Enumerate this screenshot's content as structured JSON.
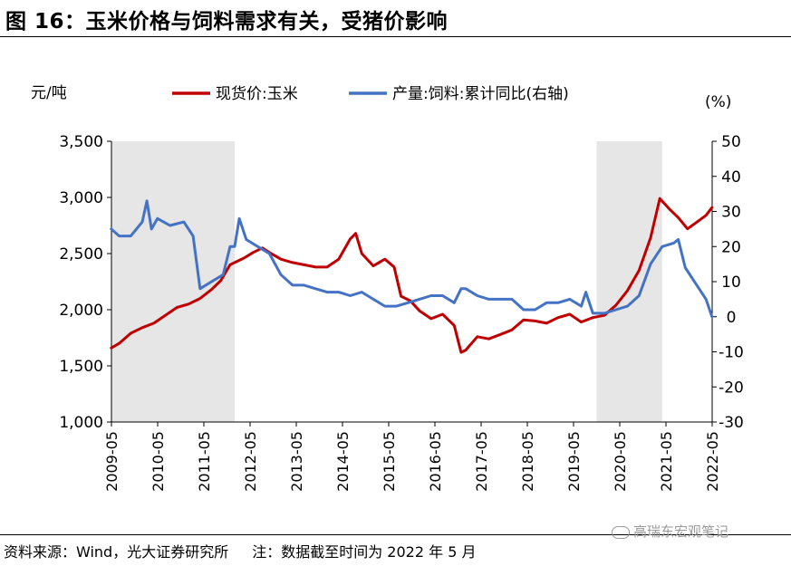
{
  "figure": {
    "title": "图 16：玉米价格与饲料需求有关，受猪价影响",
    "source": "资料来源：Wind，光大证券研究所",
    "note": "注：数据截至时间为 2022 年 5 月",
    "watermark": "高瑞东宏观笔记"
  },
  "chart_data": {
    "type": "line",
    "left_axis_unit": "元/吨",
    "right_axis_unit": "(%)",
    "ylim_left": [
      1000,
      3500
    ],
    "ylim_right": [
      -30,
      50
    ],
    "left_ticks": [
      "1,000",
      "1,500",
      "2,000",
      "2,500",
      "3,000",
      "3,500"
    ],
    "right_ticks": [
      "-30",
      "-20",
      "-10",
      "0",
      "10",
      "20",
      "30",
      "40",
      "50"
    ],
    "x_range": [
      "2009-05",
      "2022-05"
    ],
    "x_ticks": [
      "2009-05",
      "2010-05",
      "2011-05",
      "2012-05",
      "2013-05",
      "2014-05",
      "2015-05",
      "2016-05",
      "2017-05",
      "2018-05",
      "2019-05",
      "2020-05",
      "2021-05",
      "2022-05"
    ],
    "shaded_periods": [
      [
        "2009-05",
        "2012-01"
      ],
      [
        "2019-11",
        "2021-04"
      ]
    ],
    "series": [
      {
        "name": "现货价:玉米",
        "axis": "left",
        "color": "#C00000",
        "points": [
          [
            2009.33,
            1660
          ],
          [
            2009.5,
            1700
          ],
          [
            2009.75,
            1790
          ],
          [
            2010.0,
            1840
          ],
          [
            2010.25,
            1880
          ],
          [
            2010.5,
            1950
          ],
          [
            2010.75,
            2020
          ],
          [
            2011.0,
            2050
          ],
          [
            2011.25,
            2100
          ],
          [
            2011.5,
            2180
          ],
          [
            2011.7,
            2260
          ],
          [
            2011.9,
            2400
          ],
          [
            2012.0,
            2420
          ],
          [
            2012.2,
            2460
          ],
          [
            2012.4,
            2510
          ],
          [
            2012.6,
            2550
          ],
          [
            2012.75,
            2510
          ],
          [
            2013.0,
            2450
          ],
          [
            2013.25,
            2420
          ],
          [
            2013.5,
            2400
          ],
          [
            2013.75,
            2380
          ],
          [
            2014.0,
            2380
          ],
          [
            2014.25,
            2450
          ],
          [
            2014.5,
            2630
          ],
          [
            2014.62,
            2680
          ],
          [
            2014.75,
            2500
          ],
          [
            2015.0,
            2390
          ],
          [
            2015.25,
            2450
          ],
          [
            2015.45,
            2380
          ],
          [
            2015.6,
            2120
          ],
          [
            2015.8,
            2080
          ],
          [
            2016.0,
            1990
          ],
          [
            2016.25,
            1920
          ],
          [
            2016.5,
            1960
          ],
          [
            2016.75,
            1860
          ],
          [
            2016.9,
            1620
          ],
          [
            2017.0,
            1640
          ],
          [
            2017.25,
            1760
          ],
          [
            2017.5,
            1740
          ],
          [
            2017.75,
            1780
          ],
          [
            2018.0,
            1820
          ],
          [
            2018.25,
            1910
          ],
          [
            2018.5,
            1900
          ],
          [
            2018.75,
            1880
          ],
          [
            2019.0,
            1930
          ],
          [
            2019.25,
            1960
          ],
          [
            2019.5,
            1890
          ],
          [
            2019.75,
            1930
          ],
          [
            2020.0,
            1950
          ],
          [
            2020.25,
            2040
          ],
          [
            2020.5,
            2170
          ],
          [
            2020.75,
            2350
          ],
          [
            2021.0,
            2640
          ],
          [
            2021.2,
            2990
          ],
          [
            2021.4,
            2900
          ],
          [
            2021.6,
            2820
          ],
          [
            2021.8,
            2720
          ],
          [
            2022.0,
            2780
          ],
          [
            2022.2,
            2840
          ],
          [
            2022.33,
            2910
          ]
        ]
      },
      {
        "name": "产量:饲料:累计同比(右轴)",
        "axis": "right",
        "color": "#4472C4",
        "points": [
          [
            2009.33,
            25
          ],
          [
            2009.5,
            23
          ],
          [
            2009.75,
            23
          ],
          [
            2010.0,
            27
          ],
          [
            2010.1,
            33
          ],
          [
            2010.2,
            25
          ],
          [
            2010.33,
            28
          ],
          [
            2010.6,
            26
          ],
          [
            2010.9,
            27
          ],
          [
            2011.1,
            23
          ],
          [
            2011.25,
            8
          ],
          [
            2011.5,
            10
          ],
          [
            2011.75,
            12
          ],
          [
            2011.9,
            20
          ],
          [
            2012.0,
            20
          ],
          [
            2012.1,
            28
          ],
          [
            2012.25,
            22
          ],
          [
            2012.5,
            20
          ],
          [
            2012.75,
            18
          ],
          [
            2013.0,
            12
          ],
          [
            2013.25,
            9
          ],
          [
            2013.5,
            9
          ],
          [
            2013.75,
            8
          ],
          [
            2014.0,
            7
          ],
          [
            2014.25,
            7
          ],
          [
            2014.5,
            6
          ],
          [
            2014.75,
            7
          ],
          [
            2015.0,
            5
          ],
          [
            2015.25,
            3
          ],
          [
            2015.5,
            3
          ],
          [
            2015.75,
            4
          ],
          [
            2016.0,
            5
          ],
          [
            2016.25,
            6
          ],
          [
            2016.5,
            6
          ],
          [
            2016.75,
            4
          ],
          [
            2016.9,
            8
          ],
          [
            2017.0,
            8
          ],
          [
            2017.25,
            6
          ],
          [
            2017.5,
            5
          ],
          [
            2017.75,
            5
          ],
          [
            2018.0,
            5
          ],
          [
            2018.25,
            2
          ],
          [
            2018.5,
            2
          ],
          [
            2018.75,
            4
          ],
          [
            2019.0,
            4
          ],
          [
            2019.25,
            5
          ],
          [
            2019.5,
            3
          ],
          [
            2019.6,
            7
          ],
          [
            2019.75,
            1
          ],
          [
            2020.0,
            1
          ],
          [
            2020.25,
            2
          ],
          [
            2020.5,
            3
          ],
          [
            2020.75,
            6
          ],
          [
            2021.0,
            15
          ],
          [
            2021.25,
            20
          ],
          [
            2021.5,
            21
          ],
          [
            2021.6,
            22
          ],
          [
            2021.75,
            14
          ],
          [
            2022.0,
            9
          ],
          [
            2022.2,
            5
          ],
          [
            2022.33,
            0
          ]
        ]
      }
    ]
  }
}
